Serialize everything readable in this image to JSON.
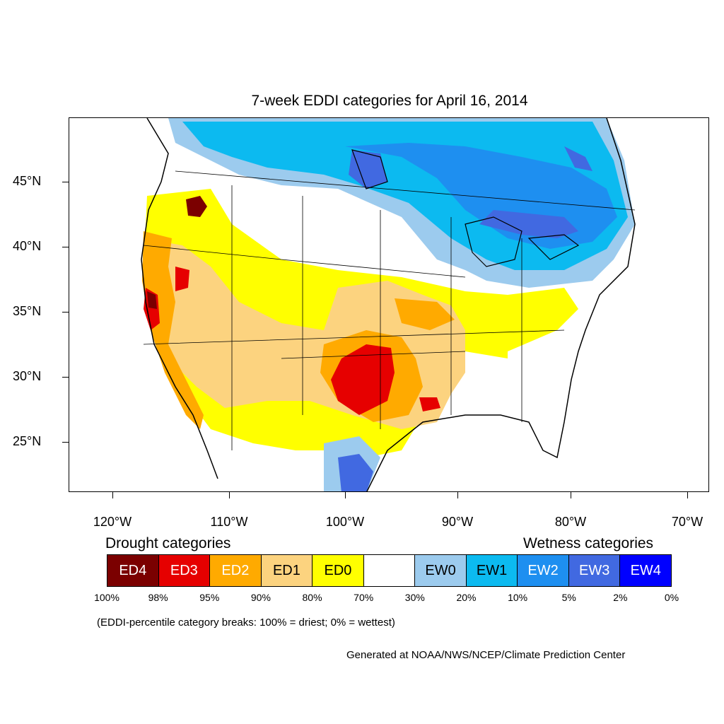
{
  "title": "7-week EDDI categories for April 16, 2014",
  "lat_labels": [
    "45°N",
    "40°N",
    "35°N",
    "30°N",
    "25°N"
  ],
  "lon_labels": [
    "120°W",
    "110°W",
    "100°W",
    "90°W",
    "80°W",
    "70°W"
  ],
  "legend": {
    "drought_heading": "Drought categories",
    "wetness_heading": "Wetness categories",
    "categories": [
      {
        "label": "ED4",
        "color": "#7b0000",
        "text_color": "#ffffff"
      },
      {
        "label": "ED3",
        "color": "#e60000",
        "text_color": "#ffffff"
      },
      {
        "label": "ED2",
        "color": "#ffaa00",
        "text_color": "#ffffff"
      },
      {
        "label": "ED1",
        "color": "#fcd37f",
        "text_color": "#000000"
      },
      {
        "label": "ED0",
        "color": "#ffff00",
        "text_color": "#000000"
      },
      {
        "label": "",
        "color": "#ffffff",
        "text_color": "#000000"
      },
      {
        "label": "EW0",
        "color": "#9ccbee",
        "text_color": "#000000"
      },
      {
        "label": "EW1",
        "color": "#0cbaf0",
        "text_color": "#000000"
      },
      {
        "label": "EW2",
        "color": "#1e8ff0",
        "text_color": "#ffffff"
      },
      {
        "label": "EW3",
        "color": "#4169e1",
        "text_color": "#ffffff"
      },
      {
        "label": "EW4",
        "color": "#0000ff",
        "text_color": "#ffffff"
      }
    ],
    "breaks": [
      "100%",
      "98%",
      "95%",
      "90%",
      "80%",
      "70%",
      "30%",
      "20%",
      "10%",
      "5%",
      "2%",
      "0%"
    ]
  },
  "note": "(EDDI-percentile category breaks: 100% = driest; 0% = wettest)",
  "credit": "Generated at NOAA/NWS/NCEP/Climate Prediction Center"
}
